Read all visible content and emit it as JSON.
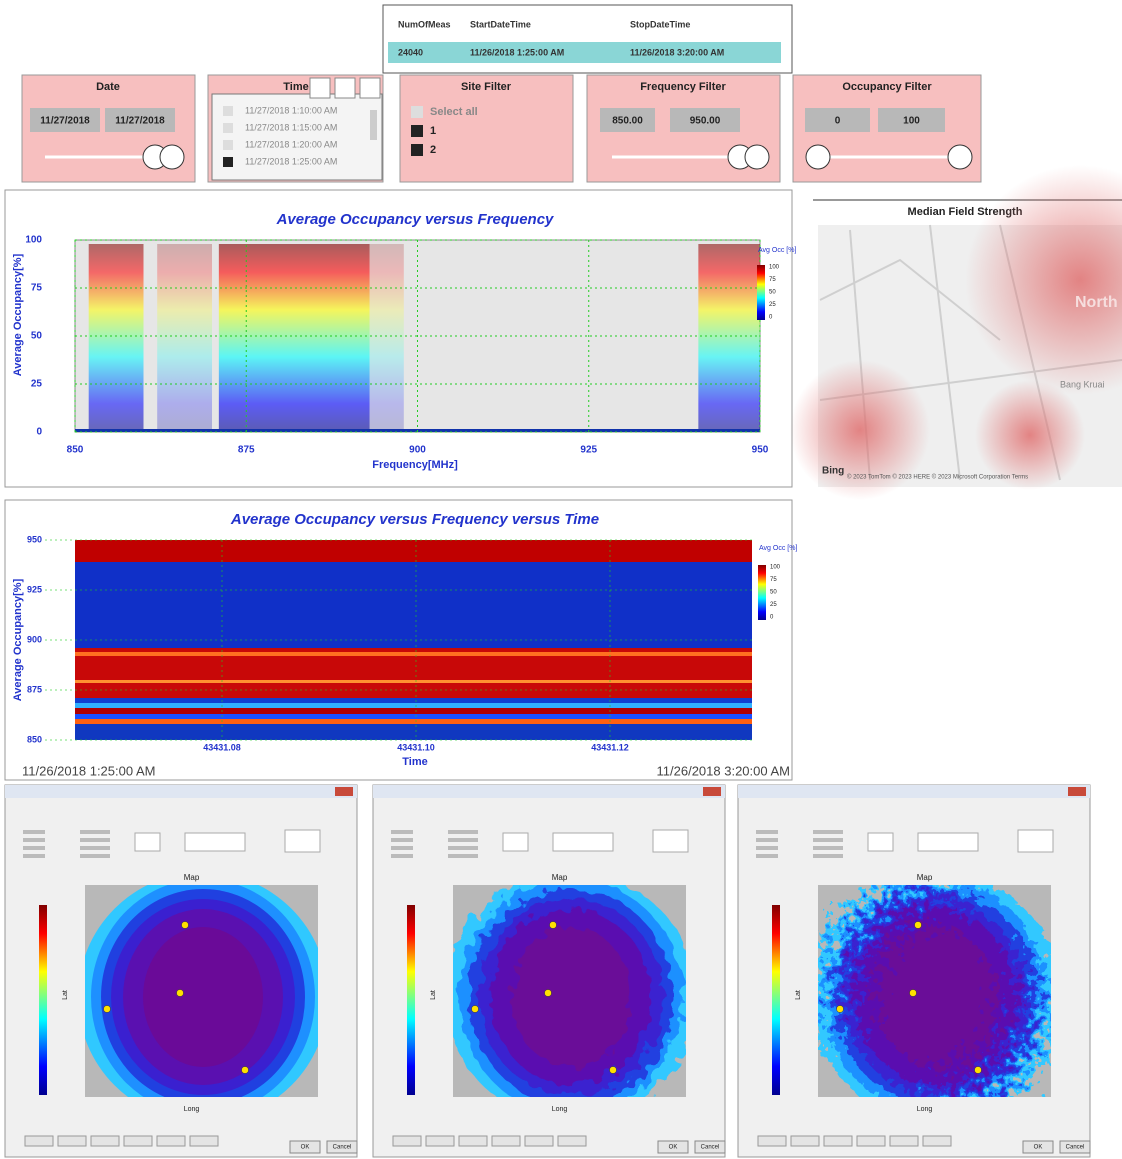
{
  "summary_table": {
    "columns": [
      "NumOfMeas",
      "StartDateTime",
      "StopDateTime"
    ],
    "rows": [
      [
        "24040",
        "11/26/2018 1:25:00 AM",
        "11/26/2018 3:20:00 AM"
      ]
    ]
  },
  "filters": {
    "date": {
      "title": "Date",
      "start": "11/27/2018",
      "end": "11/27/2018"
    },
    "time": {
      "title": "Time",
      "items": [
        "11/27/2018 1:10:00 AM",
        "11/27/2018 1:15:00 AM",
        "11/27/2018 1:20:00 AM",
        "11/27/2018 1:25:00 AM"
      ]
    },
    "site": {
      "title": "Site Filter",
      "items": [
        "Select all",
        "1",
        "2"
      ]
    },
    "frequency": {
      "title": "Frequency Filter",
      "min": "850.00",
      "max": "950.00"
    },
    "occupancy": {
      "title": "Occupancy Filter",
      "min": "0",
      "max": "100"
    }
  },
  "occupancy_chart": {
    "title": "Average Occupancy versus Frequency",
    "y_label": "Average Occupancy[%]",
    "x_label": "Frequency[MHz]",
    "x_ticks": [
      "850",
      "875",
      "900",
      "925",
      "950"
    ],
    "y_ticks": [
      "0",
      "25",
      "50",
      "75",
      "100"
    ],
    "colorbar_title": "Avg Occ [%]",
    "colorbar_ticks": [
      "100",
      "75",
      "50",
      "25",
      "0"
    ]
  },
  "field_map": {
    "title": "Median Field Strength",
    "places": [
      "North",
      "Bang Kruai"
    ],
    "logo": "Bing",
    "attribution": "© 2023 TomTom © 2023 HERE © 2023 Microsoft Corporation Terms"
  },
  "heatmap_chart": {
    "title": "Average Occupancy versus Frequency  versus Time",
    "y_label": "Average Occupancy[%]",
    "x_label": "Time",
    "y_ticks": [
      "950",
      "925",
      "900",
      "875",
      "850"
    ],
    "x_ticks": [
      "43431.08",
      "43431.10",
      "43431.12"
    ],
    "colorbar_title": "Avg Occ [%]",
    "colorbar_ticks": [
      "100",
      "75",
      "50",
      "25",
      "0"
    ],
    "start_label": "11/26/2018 1:25:00 AM",
    "end_label": "11/26/2018 3:20:00 AM"
  },
  "map_windows": [
    {
      "plot_title": "Map",
      "x_label": "Long",
      "y_label": "Lat",
      "buttons": [
        "OK",
        "Cancel"
      ]
    },
    {
      "plot_title": "Map",
      "x_label": "Long",
      "y_label": "Lat",
      "buttons": [
        "OK",
        "Cancel"
      ]
    },
    {
      "plot_title": "Map",
      "x_label": "Long",
      "y_label": "Lat",
      "buttons": [
        "OK",
        "Cancel"
      ]
    }
  ]
}
